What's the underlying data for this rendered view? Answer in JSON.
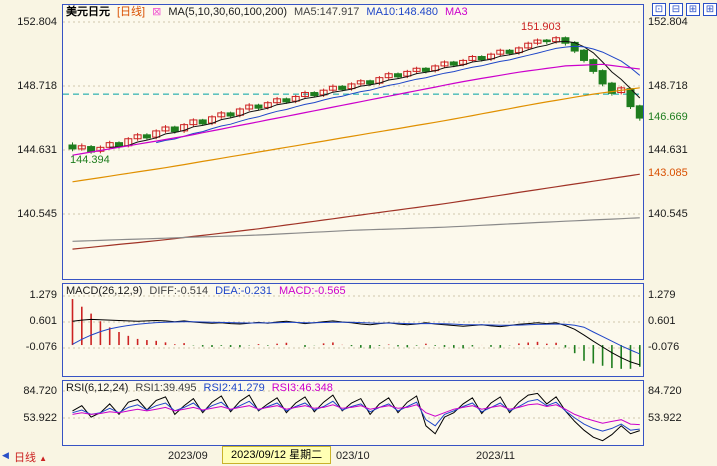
{
  "header": {
    "symbol": "美元日元",
    "period_tag": "[日线]",
    "indicator_close_glyph": "⊠",
    "ma_label": "MA(5,10,30,60,100,200)",
    "ma5": "MA5:147.917",
    "ma10": "MA10:148.480",
    "ma30": "MA3",
    "toolbar_icons": [
      {
        "name": "layout-single-icon",
        "glyph": "⊡"
      },
      {
        "name": "layout-rows-icon",
        "glyph": "⊟"
      },
      {
        "name": "layout-grid-icon",
        "glyph": "⊞"
      },
      {
        "name": "layout-overlay-icon",
        "glyph": "⊞"
      }
    ]
  },
  "main_chart": {
    "axis": [
      "152.804",
      "148.718",
      "144.631",
      "140.545"
    ],
    "high_label": "151.903",
    "low_label": "144.394",
    "last_label": "146.669",
    "ma100_label": "143.085"
  },
  "macd": {
    "title": "MACD(26,12,9)",
    "diff_label": "DIFF:-0.514",
    "dea_label": "DEA:-0.231",
    "macd_label": "MACD:-0.565",
    "axis": [
      "1.279",
      "0.601",
      "-0.076"
    ]
  },
  "rsi": {
    "title": "RSI(6,12,24)",
    "rsi1_label": "RSI1:39.495",
    "rsi2_label": "RSI2:41.279",
    "rsi3_label": "RSI3:46.348",
    "axis": [
      "84.720",
      "53.922"
    ]
  },
  "timeline": {
    "scroll_left_glyph": "◀",
    "period": "日线",
    "period_arrow": "▲",
    "months": [
      "2023/09",
      "023/10",
      "2023/11"
    ],
    "selected": "2023/09/12 星期二"
  },
  "colors": {
    "up": "#cc2222",
    "down": "#1e7d1e",
    "ma5": "#111111",
    "ma10": "#1f46c8",
    "ma30": "#cc00cc",
    "ma60": "#e09000",
    "ma100": "#a03326",
    "ma200": "#8a8a8a",
    "reference": "#00a2a2",
    "dea": "#1f46c8",
    "rsi2": "#1f46c8",
    "rsi3": "#cc00cc",
    "grid": "#cfc8ab",
    "panel_border": "#3753c4"
  },
  "chart_data": {
    "type": "candlestick",
    "title": "美元日元 [日线]",
    "high_annotation": 151.903,
    "low_annotation": 144.394,
    "last_price": 146.669,
    "reference_line": 148.2,
    "main_axis_range": [
      140.545,
      152.804
    ],
    "candles": [
      [
        144.95,
        145.12,
        144.55,
        144.7
      ],
      [
        144.7,
        145.05,
        144.58,
        144.9
      ],
      [
        144.85,
        144.95,
        144.394,
        144.5
      ],
      [
        144.55,
        144.92,
        144.42,
        144.8
      ],
      [
        144.8,
        145.22,
        144.68,
        145.1
      ],
      [
        145.1,
        145.18,
        144.72,
        144.85
      ],
      [
        144.9,
        145.45,
        144.8,
        145.35
      ],
      [
        145.35,
        145.72,
        145.22,
        145.6
      ],
      [
        145.6,
        145.7,
        145.28,
        145.4
      ],
      [
        145.45,
        145.95,
        145.32,
        145.85
      ],
      [
        145.85,
        146.22,
        145.72,
        146.1
      ],
      [
        146.1,
        146.18,
        145.68,
        145.8
      ],
      [
        145.85,
        146.35,
        145.72,
        146.25
      ],
      [
        146.25,
        146.65,
        146.12,
        146.55
      ],
      [
        146.55,
        146.62,
        146.18,
        146.3
      ],
      [
        146.35,
        146.85,
        146.22,
        146.75
      ],
      [
        146.75,
        147.12,
        146.62,
        147.0
      ],
      [
        147.0,
        147.08,
        146.68,
        146.8
      ],
      [
        146.85,
        147.35,
        146.72,
        147.25
      ],
      [
        147.25,
        147.62,
        147.12,
        147.5
      ],
      [
        147.5,
        147.58,
        147.18,
        147.3
      ],
      [
        147.35,
        147.75,
        147.22,
        147.65
      ],
      [
        147.65,
        148.02,
        147.52,
        147.9
      ],
      [
        147.9,
        147.98,
        147.58,
        147.7
      ],
      [
        147.75,
        148.15,
        147.62,
        148.05
      ],
      [
        148.05,
        148.42,
        147.92,
        148.3
      ],
      [
        148.3,
        148.38,
        147.98,
        148.1
      ],
      [
        148.15,
        148.55,
        148.02,
        148.45
      ],
      [
        148.45,
        148.82,
        148.32,
        148.7
      ],
      [
        148.7,
        148.78,
        148.38,
        148.5
      ],
      [
        148.55,
        148.95,
        148.42,
        148.85
      ],
      [
        148.85,
        149.15,
        148.72,
        149.05
      ],
      [
        149.05,
        149.12,
        148.72,
        148.85
      ],
      [
        148.9,
        149.35,
        148.78,
        149.25
      ],
      [
        149.25,
        149.62,
        149.12,
        149.5
      ],
      [
        149.5,
        149.58,
        149.18,
        149.3
      ],
      [
        149.35,
        149.75,
        149.22,
        149.65
      ],
      [
        149.65,
        149.95,
        149.52,
        149.85
      ],
      [
        149.85,
        149.92,
        149.52,
        149.65
      ],
      [
        149.7,
        150.1,
        149.58,
        150.0
      ],
      [
        150.0,
        150.35,
        149.88,
        150.25
      ],
      [
        150.25,
        150.32,
        149.92,
        150.05
      ],
      [
        150.1,
        150.45,
        149.98,
        150.35
      ],
      [
        150.35,
        150.7,
        150.22,
        150.6
      ],
      [
        150.6,
        150.68,
        150.28,
        150.4
      ],
      [
        150.45,
        150.85,
        150.32,
        150.75
      ],
      [
        150.75,
        151.1,
        150.62,
        151.0
      ],
      [
        151.0,
        151.08,
        150.68,
        150.8
      ],
      [
        150.85,
        151.25,
        150.72,
        151.15
      ],
      [
        151.15,
        151.55,
        151.02,
        151.45
      ],
      [
        151.45,
        151.75,
        151.32,
        151.65
      ],
      [
        151.65,
        151.72,
        151.38,
        151.55
      ],
      [
        151.55,
        151.903,
        151.42,
        151.8
      ],
      [
        151.8,
        151.88,
        151.3,
        151.45
      ],
      [
        151.5,
        151.58,
        150.82,
        150.95
      ],
      [
        151.0,
        151.08,
        150.22,
        150.35
      ],
      [
        150.4,
        150.48,
        149.5,
        149.65
      ],
      [
        149.7,
        149.78,
        148.7,
        148.85
      ],
      [
        148.9,
        148.98,
        148.1,
        148.25
      ],
      [
        148.3,
        148.72,
        148.18,
        148.6
      ],
      [
        148.55,
        148.62,
        147.25,
        147.4
      ],
      [
        147.45,
        147.52,
        146.5,
        146.669
      ]
    ],
    "overlays": {
      "ma30": [
        [
          0,
          144.3
        ],
        [
          6,
          144.9
        ],
        [
          12,
          145.5
        ],
        [
          18,
          146.2
        ],
        [
          24,
          146.9
        ],
        [
          30,
          147.6
        ],
        [
          36,
          148.3
        ],
        [
          42,
          149.0
        ],
        [
          48,
          149.6
        ],
        [
          53,
          150.0
        ],
        [
          57,
          150.1
        ],
        [
          61,
          149.8
        ]
      ],
      "ma60": [
        [
          0,
          142.6
        ],
        [
          10,
          143.5
        ],
        [
          20,
          144.5
        ],
        [
          30,
          145.5
        ],
        [
          40,
          146.5
        ],
        [
          50,
          147.6
        ],
        [
          56,
          148.2
        ],
        [
          61,
          148.6
        ]
      ],
      "ma100": [
        [
          0,
          138.3
        ],
        [
          10,
          138.9
        ],
        [
          20,
          139.6
        ],
        [
          30,
          140.4
        ],
        [
          40,
          141.2
        ],
        [
          50,
          142.1
        ],
        [
          61,
          143.085
        ]
      ],
      "ma200": [
        [
          0,
          138.8
        ],
        [
          10,
          139.0
        ],
        [
          20,
          139.2
        ],
        [
          30,
          139.5
        ],
        [
          40,
          139.7
        ],
        [
          50,
          140.0
        ],
        [
          61,
          140.3
        ]
      ]
    },
    "macd": {
      "diff": [
        0.62,
        0.65,
        0.67,
        0.66,
        0.65,
        0.64,
        0.63,
        0.62,
        0.63,
        0.64,
        0.63,
        0.61,
        0.63,
        0.6,
        0.58,
        0.57,
        0.58,
        0.56,
        0.55,
        0.57,
        0.59,
        0.57,
        0.6,
        0.62,
        0.59,
        0.56,
        0.58,
        0.61,
        0.63,
        0.6,
        0.58,
        0.55,
        0.53,
        0.56,
        0.58,
        0.55,
        0.53,
        0.55,
        0.58,
        0.55,
        0.53,
        0.51,
        0.49,
        0.51,
        0.53,
        0.5,
        0.48,
        0.51,
        0.54,
        0.56,
        0.58,
        0.56,
        0.58,
        0.51,
        0.41,
        0.26,
        0.1,
        -0.05,
        -0.2,
        -0.33,
        -0.44,
        -0.514
      ],
      "dea": [
        0.02,
        0.15,
        0.26,
        0.35,
        0.42,
        0.47,
        0.51,
        0.54,
        0.565,
        0.585,
        0.595,
        0.6,
        0.605,
        0.605,
        0.6,
        0.595,
        0.59,
        0.585,
        0.578,
        0.575,
        0.578,
        0.578,
        0.582,
        0.59,
        0.59,
        0.584,
        0.583,
        0.588,
        0.596,
        0.597,
        0.594,
        0.585,
        0.574,
        0.571,
        0.573,
        0.568,
        0.56,
        0.558,
        0.562,
        0.56,
        0.554,
        0.545,
        0.534,
        0.529,
        0.529,
        0.523,
        0.515,
        0.514,
        0.519,
        0.527,
        0.538,
        0.542,
        0.55,
        0.542,
        0.516,
        0.465,
        0.34,
        0.22,
        0.1,
        -0.02,
        -0.13,
        -0.231
      ]
    },
    "rsi": {
      "rsi1": [
        62,
        68,
        55,
        60,
        70,
        58,
        72,
        75,
        63,
        74,
        78,
        58,
        68,
        76,
        60,
        72,
        79,
        61,
        73,
        80,
        62,
        70,
        77,
        60,
        71,
        78,
        61,
        72,
        80,
        62,
        71,
        76,
        58,
        70,
        77,
        60,
        72,
        79,
        45,
        36,
        55,
        60,
        70,
        77,
        59,
        71,
        78,
        60,
        72,
        80,
        82,
        70,
        78,
        62,
        50,
        40,
        32,
        28,
        35,
        45,
        36,
        39.495
      ],
      "rsi2": [
        60,
        63,
        58,
        60,
        65,
        60,
        66,
        69,
        63,
        68,
        71,
        62,
        66,
        71,
        62,
        68,
        72,
        63,
        68,
        73,
        63,
        67,
        71,
        62,
        67,
        71,
        63,
        67,
        73,
        63,
        67,
        70,
        61,
        66,
        70,
        62,
        67,
        72,
        52,
        45,
        58,
        62,
        67,
        71,
        61,
        66,
        71,
        62,
        67,
        73,
        75,
        68,
        72,
        62,
        54,
        47,
        42,
        39,
        42,
        47,
        40,
        41.279
      ],
      "rsi3": [
        58,
        60,
        58,
        59,
        61,
        60,
        62,
        64,
        62,
        64,
        66,
        62,
        64,
        66,
        63,
        65,
        67,
        64,
        66,
        68,
        64,
        66,
        68,
        64,
        66,
        68,
        65,
        66,
        69,
        65,
        66,
        68,
        64,
        66,
        68,
        65,
        66,
        69,
        60,
        56,
        60,
        64,
        66,
        68,
        64,
        66,
        68,
        64,
        66,
        69,
        70,
        67,
        69,
        64,
        58,
        54,
        51,
        48,
        50,
        52,
        47,
        46.348
      ]
    }
  }
}
